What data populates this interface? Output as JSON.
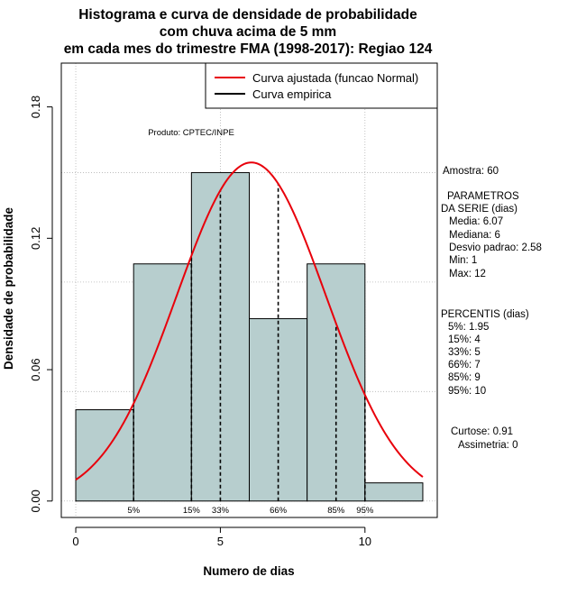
{
  "chart_data": {
    "type": "bar",
    "title": [
      "Histograma e curva de densidade de probabilidade",
      "com chuva acima de 5 mm",
      "em cada mes do trimestre FMA (1998-2017): Regiao 124"
    ],
    "xlabel": "Numero de dias",
    "ylabel": "Densidade de probabilidade",
    "xlim": [
      -0.5,
      12.5
    ],
    "ylim": [
      -0.0075,
      0.2
    ],
    "xticks": [
      0,
      5,
      10
    ],
    "yticks": [
      0.0,
      0.06,
      0.12,
      0.18
    ],
    "ytick_labels": [
      "0.00",
      "0.06",
      "0.12",
      "0.18"
    ],
    "grid": true,
    "bar_color": "#b7cece",
    "bins": [
      {
        "start": 0,
        "end": 2,
        "density": 0.0417
      },
      {
        "start": 2,
        "end": 4,
        "density": 0.1083
      },
      {
        "start": 4,
        "end": 6,
        "density": 0.15
      },
      {
        "start": 6,
        "end": 8,
        "density": 0.0833
      },
      {
        "start": 8,
        "end": 10,
        "density": 0.1083
      },
      {
        "start": 10,
        "end": 12,
        "density": 0.0083
      }
    ],
    "series": [
      {
        "name": "Curva ajustada (funcao Normal)",
        "kind": "normal",
        "mean": 6.07,
        "sd": 2.58,
        "color": "#e8000b"
      },
      {
        "name": "Curva empirica",
        "kind": "empirical",
        "color": "#000000"
      }
    ],
    "percentile_lines": [
      {
        "x": 2,
        "label": "5%"
      },
      {
        "x": 4,
        "label": "15%"
      },
      {
        "x": 5,
        "label": "33%"
      },
      {
        "x": 7,
        "label": "66%"
      },
      {
        "x": 9,
        "label": "85%"
      },
      {
        "x": 10,
        "label": "95%"
      }
    ],
    "legend_position": "top-right",
    "product_label": "Produto: CPTEC/INPE",
    "side_panel": {
      "amostra": "Amostra: 60",
      "parametros_title": [
        "PARAMETROS",
        "DA SERIE (dias)"
      ],
      "parametros": [
        "Media: 6.07",
        "Mediana: 6",
        "Desvio padrao: 2.58",
        "Min: 1",
        "Max: 12"
      ],
      "percentis_title": "PERCENTIS (dias)",
      "percentis": [
        "5%: 1.95",
        "15%: 4",
        "33%: 5",
        "66%: 7",
        "85%: 9",
        "95%: 10"
      ],
      "curtose": "Curtose: 0.91",
      "assimetria": "Assimetria: 0"
    }
  }
}
